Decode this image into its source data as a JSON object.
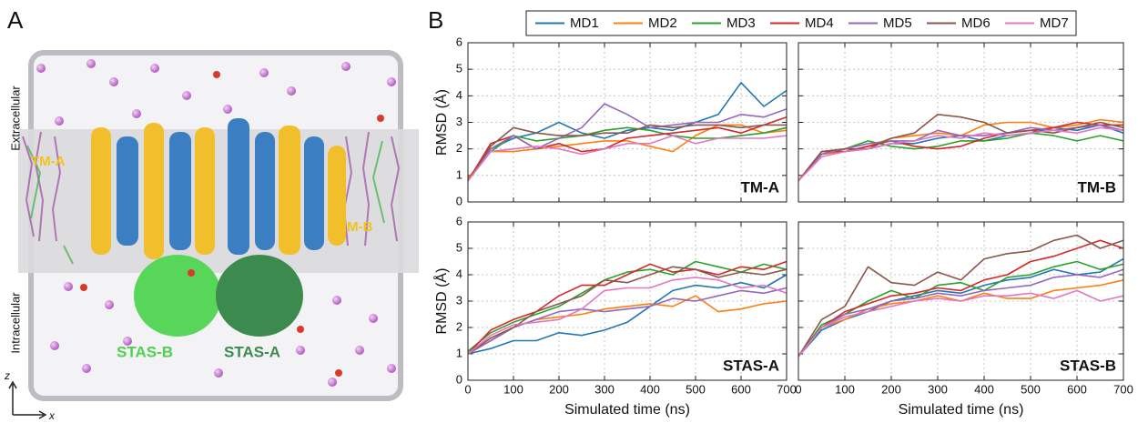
{
  "panel_a": {
    "label": "A",
    "extracellular": "Extracellular",
    "intracellular": "Intracellular",
    "tm_a": "TM-A",
    "tm_b": "TM-B",
    "stas_b": "STAS-B",
    "stas_a": "STAS-A",
    "axis_z": "z",
    "axis_x": "x"
  },
  "panel_b": {
    "label": "B"
  },
  "chart_data": [
    {
      "type": "line",
      "title": "TM-A",
      "y_label": "RMSD (Å)",
      "ytick_labels": true,
      "xtick_labels": false,
      "grid": true,
      "x": [
        0,
        50,
        100,
        150,
        200,
        250,
        300,
        350,
        400,
        450,
        500,
        550,
        600,
        650,
        700
      ],
      "xlim": [
        0,
        700
      ],
      "xticks": [
        0,
        100,
        200,
        300,
        400,
        500,
        600,
        700
      ],
      "ylim": [
        0,
        6
      ],
      "yticks": [
        0,
        1,
        2,
        3,
        4,
        5,
        6
      ],
      "series": [
        {
          "name": "MD1",
          "color": "#1f77b4",
          "values": [
            0.8,
            2.0,
            2.4,
            2.6,
            3.0,
            2.6,
            2.4,
            2.7,
            2.8,
            2.7,
            3.0,
            3.3,
            4.5,
            3.6,
            4.2
          ]
        },
        {
          "name": "MD2",
          "color": "#ff7f0e",
          "values": [
            0.9,
            1.9,
            1.9,
            2.0,
            2.1,
            2.2,
            2.3,
            2.3,
            2.1,
            1.9,
            2.5,
            2.9,
            2.9,
            2.6,
            2.7
          ]
        },
        {
          "name": "MD3",
          "color": "#2ca02c",
          "values": [
            0.8,
            1.9,
            2.5,
            2.3,
            2.4,
            2.5,
            2.7,
            2.8,
            2.7,
            2.5,
            2.4,
            2.4,
            2.5,
            2.6,
            2.8
          ]
        },
        {
          "name": "MD4",
          "color": "#d62728",
          "values": [
            0.8,
            2.2,
            2.5,
            2.0,
            2.2,
            1.9,
            2.0,
            2.4,
            2.5,
            2.6,
            2.7,
            2.8,
            2.6,
            2.9,
            3.2
          ]
        },
        {
          "name": "MD5",
          "color": "#9467bd",
          "values": [
            0.8,
            2.0,
            2.5,
            2.0,
            2.4,
            2.8,
            3.7,
            3.3,
            2.8,
            2.9,
            3.0,
            3.0,
            3.3,
            3.2,
            3.5
          ]
        },
        {
          "name": "MD6",
          "color": "#8c564b",
          "values": [
            0.8,
            2.1,
            2.8,
            2.6,
            2.5,
            2.5,
            2.6,
            2.6,
            2.9,
            2.8,
            2.9,
            2.9,
            2.8,
            2.9,
            2.9
          ]
        },
        {
          "name": "MD7",
          "color": "#e377c2",
          "values": [
            0.8,
            1.9,
            2.0,
            2.1,
            2.0,
            1.8,
            2.0,
            2.2,
            2.2,
            2.5,
            2.2,
            2.4,
            2.4,
            2.4,
            2.5
          ]
        }
      ]
    },
    {
      "type": "line",
      "title": "TM-B",
      "ytick_labels": false,
      "xtick_labels": false,
      "grid": true,
      "x": [
        0,
        50,
        100,
        150,
        200,
        250,
        300,
        350,
        400,
        450,
        500,
        550,
        600,
        650,
        700
      ],
      "xlim": [
        0,
        700
      ],
      "xticks": [
        0,
        100,
        200,
        300,
        400,
        500,
        600,
        700
      ],
      "ylim": [
        0,
        6
      ],
      "yticks": [
        0,
        1,
        2,
        3,
        4,
        5,
        6
      ],
      "series": [
        {
          "name": "MD1",
          "color": "#1f77b4",
          "values": [
            0.8,
            1.8,
            1.9,
            2.0,
            2.2,
            2.2,
            2.4,
            2.5,
            2.3,
            2.5,
            2.6,
            2.8,
            2.7,
            2.9,
            2.6
          ]
        },
        {
          "name": "MD2",
          "color": "#ff7f0e",
          "values": [
            0.8,
            1.8,
            1.9,
            2.1,
            2.4,
            2.5,
            2.6,
            2.5,
            2.9,
            3.0,
            3.0,
            2.8,
            2.9,
            3.1,
            3.0
          ]
        },
        {
          "name": "MD3",
          "color": "#2ca02c",
          "values": [
            0.8,
            1.8,
            2.0,
            2.3,
            2.1,
            2.0,
            2.1,
            2.3,
            2.3,
            2.4,
            2.6,
            2.5,
            2.3,
            2.5,
            2.3
          ]
        },
        {
          "name": "MD4",
          "color": "#d62728",
          "values": [
            0.8,
            1.9,
            1.9,
            2.1,
            2.3,
            2.1,
            2.0,
            2.1,
            2.4,
            2.6,
            2.7,
            2.8,
            3.0,
            2.9,
            2.9
          ]
        },
        {
          "name": "MD5",
          "color": "#9467bd",
          "values": [
            0.8,
            1.8,
            2.0,
            2.2,
            2.3,
            2.3,
            2.7,
            2.5,
            2.5,
            2.6,
            2.8,
            2.7,
            2.8,
            2.9,
            2.7
          ]
        },
        {
          "name": "MD6",
          "color": "#8c564b",
          "values": [
            0.8,
            1.9,
            2.0,
            2.0,
            2.4,
            2.6,
            3.3,
            3.2,
            3.0,
            2.6,
            2.7,
            2.6,
            2.8,
            3.0,
            2.8
          ]
        },
        {
          "name": "MD7",
          "color": "#e377c2",
          "values": [
            0.8,
            1.7,
            1.9,
            2.0,
            2.2,
            2.3,
            2.5,
            2.4,
            2.6,
            2.5,
            2.6,
            2.7,
            2.6,
            2.8,
            2.7
          ]
        }
      ]
    },
    {
      "type": "line",
      "title": "STAS-A",
      "y_label": "RMSD (Å)",
      "x_label": "Simulated time (ns)",
      "ytick_labels": true,
      "xtick_labels": true,
      "grid": true,
      "x": [
        0,
        50,
        100,
        150,
        200,
        250,
        300,
        350,
        400,
        450,
        500,
        550,
        600,
        650,
        700
      ],
      "xlim": [
        0,
        700
      ],
      "xticks": [
        0,
        100,
        200,
        300,
        400,
        500,
        600,
        700
      ],
      "ylim": [
        0,
        6
      ],
      "yticks": [
        0,
        1,
        2,
        3,
        4,
        5,
        6
      ],
      "series": [
        {
          "name": "MD1",
          "color": "#1f77b4",
          "values": [
            1.0,
            1.2,
            1.5,
            1.5,
            1.8,
            1.7,
            1.9,
            2.2,
            2.8,
            3.4,
            3.6,
            3.5,
            3.7,
            3.5,
            4.0
          ]
        },
        {
          "name": "MD2",
          "color": "#ff7f0e",
          "values": [
            1.0,
            1.5,
            2.0,
            2.3,
            2.4,
            2.5,
            2.7,
            2.8,
            2.9,
            2.8,
            3.2,
            2.6,
            2.7,
            2.9,
            3.0
          ]
        },
        {
          "name": "MD3",
          "color": "#2ca02c",
          "values": [
            1.1,
            1.8,
            2.2,
            2.5,
            2.8,
            3.3,
            3.8,
            4.1,
            4.2,
            4.0,
            4.5,
            4.3,
            4.1,
            4.4,
            4.2
          ]
        },
        {
          "name": "MD4",
          "color": "#d62728",
          "values": [
            1.0,
            1.9,
            2.3,
            2.6,
            3.2,
            3.6,
            3.6,
            4.0,
            4.4,
            4.1,
            4.2,
            4.0,
            4.3,
            4.2,
            4.5
          ]
        },
        {
          "name": "MD5",
          "color": "#9467bd",
          "values": [
            1.0,
            1.5,
            2.0,
            2.3,
            2.6,
            2.7,
            2.6,
            2.7,
            2.8,
            3.1,
            3.0,
            3.2,
            3.4,
            3.3,
            3.5
          ]
        },
        {
          "name": "MD6",
          "color": "#8c564b",
          "values": [
            1.0,
            1.6,
            2.0,
            2.6,
            2.9,
            3.2,
            3.8,
            3.7,
            4.0,
            4.3,
            4.2,
            3.9,
            4.1,
            4.0,
            4.2
          ]
        },
        {
          "name": "MD7",
          "color": "#e377c2",
          "values": [
            1.0,
            1.7,
            2.1,
            2.2,
            2.3,
            2.7,
            3.4,
            3.5,
            3.5,
            3.8,
            3.9,
            3.8,
            3.5,
            3.6,
            3.3
          ]
        }
      ]
    },
    {
      "type": "line",
      "title": "STAS-B",
      "x_label": "Simulated time (ns)",
      "ytick_labels": false,
      "xtick_labels": true,
      "grid": true,
      "x": [
        0,
        50,
        100,
        150,
        200,
        250,
        300,
        350,
        400,
        450,
        500,
        550,
        600,
        650,
        700
      ],
      "xlim": [
        0,
        700
      ],
      "xticks": [
        0,
        100,
        200,
        300,
        400,
        500,
        600,
        700
      ],
      "ylim": [
        0,
        6
      ],
      "yticks": [
        0,
        1,
        2,
        3,
        4,
        5,
        6
      ],
      "series": [
        {
          "name": "MD1",
          "color": "#1f77b4",
          "values": [
            0.9,
            1.9,
            2.3,
            2.6,
            3.0,
            3.2,
            3.4,
            3.3,
            3.6,
            3.8,
            3.9,
            4.2,
            4.0,
            4.1,
            4.6
          ]
        },
        {
          "name": "MD2",
          "color": "#ff7f0e",
          "values": [
            0.9,
            2.0,
            2.3,
            2.7,
            2.9,
            3.0,
            3.2,
            3.0,
            3.3,
            3.1,
            3.1,
            3.4,
            3.5,
            3.6,
            3.8
          ]
        },
        {
          "name": "MD3",
          "color": "#2ca02c",
          "values": [
            0.9,
            2.1,
            2.5,
            3.0,
            3.4,
            3.1,
            3.6,
            3.7,
            3.4,
            3.9,
            4.0,
            4.3,
            4.5,
            4.2,
            4.4
          ]
        },
        {
          "name": "MD4",
          "color": "#d62728",
          "values": [
            0.9,
            2.0,
            2.6,
            2.9,
            3.2,
            3.3,
            3.5,
            3.4,
            3.8,
            4.0,
            4.5,
            4.7,
            5.0,
            5.3,
            5.0
          ]
        },
        {
          "name": "MD5",
          "color": "#9467bd",
          "values": [
            0.9,
            2.0,
            2.5,
            2.7,
            3.0,
            3.1,
            3.3,
            3.2,
            3.4,
            3.5,
            3.6,
            3.9,
            4.0,
            3.9,
            4.2
          ]
        },
        {
          "name": "MD6",
          "color": "#8c564b",
          "values": [
            0.9,
            2.3,
            2.8,
            4.3,
            3.7,
            3.6,
            4.1,
            3.8,
            4.6,
            4.8,
            4.9,
            5.3,
            5.5,
            5.0,
            5.3
          ]
        },
        {
          "name": "MD7",
          "color": "#e377c2",
          "values": [
            0.9,
            2.0,
            2.4,
            2.6,
            2.8,
            3.0,
            3.1,
            3.0,
            3.2,
            3.2,
            3.3,
            3.1,
            3.4,
            3.0,
            3.2
          ]
        }
      ]
    }
  ]
}
